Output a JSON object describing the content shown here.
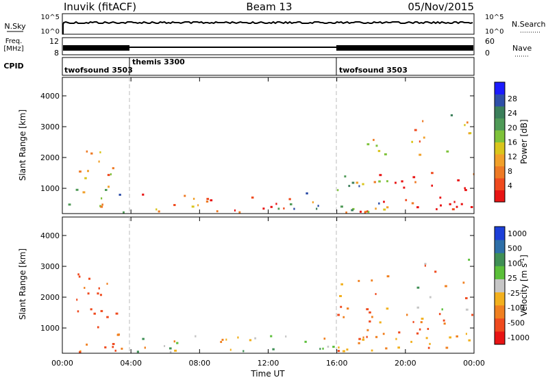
{
  "header": {
    "station": "Inuvik (fitACF)",
    "beam": "Beam 13",
    "date": "05/Nov/2015"
  },
  "left_panel_labels": {
    "nsky": "N.Sky",
    "freq_line1": "Freq.",
    "freq_line2": "[MHz]",
    "cpid": "CPID"
  },
  "right_panel_labels": {
    "nsearch": "N.Search",
    "nave": "Nave"
  },
  "small_axes": {
    "nsky_ticks_left": [
      "10^5",
      "10^0"
    ],
    "nsky_ticks_right": [
      "10^5",
      "10^0"
    ],
    "freq_ticks_left": [
      "12",
      "8"
    ],
    "nave_ticks_right": [
      "60",
      "0"
    ]
  },
  "cpid_segments": [
    {
      "label": "twofsound 3503",
      "start_hour": 0,
      "end_hour": 4
    },
    {
      "label": "themis 3300",
      "start_hour": 4,
      "end_hour": 16
    },
    {
      "label": "twofsound 3503",
      "start_hour": 16,
      "end_hour": 24
    }
  ],
  "chart_data": [
    {
      "type": "heatmap",
      "parameter": "power",
      "ylabel": "Slant Range [km]",
      "xlabel": "Time UT",
      "xlim_hours": [
        0,
        24
      ],
      "ylim_km": [
        180,
        4600
      ],
      "x_ticks": [
        "00:00",
        "04:00",
        "08:00",
        "12:00",
        "16:00",
        "20:00",
        "00:00"
      ],
      "y_ticks": [
        1000,
        2000,
        3000,
        4000
      ],
      "colorbar": {
        "label": "Power [dB]",
        "ticks": [
          "28",
          "24",
          "20",
          "16",
          "12",
          "8",
          "4"
        ],
        "colors": [
          "#1c1cff",
          "#2f4fa8",
          "#3b7f5a",
          "#4f9a57",
          "#7ec23a",
          "#d9c51c",
          "#f1a02a",
          "#ee7a25",
          "#ef4a1e",
          "#e81414"
        ]
      },
      "echo_regions": [
        {
          "t": [
            0.2,
            3.6
          ],
          "r": [
            200,
            1050
          ],
          "level": "mixed_low"
        },
        {
          "t": [
            0.8,
            3.4
          ],
          "r": [
            1300,
            2300
          ],
          "level": "mid"
        },
        {
          "t": [
            4.2,
            8.5
          ],
          "r": [
            200,
            800
          ],
          "level": "mixed_high"
        },
        {
          "t": [
            8.5,
            12.5
          ],
          "r": [
            200,
            700
          ],
          "level": "high"
        },
        {
          "t": [
            12.5,
            16.0
          ],
          "r": [
            200,
            900
          ],
          "level": "mixed"
        },
        {
          "t": [
            16.0,
            19.0
          ],
          "r": [
            200,
            2800
          ],
          "level": "mixed"
        },
        {
          "t": [
            19.0,
            24.0
          ],
          "r": [
            300,
            1500
          ],
          "level": "high"
        },
        {
          "t": [
            20.0,
            23.8
          ],
          "r": [
            1500,
            3800
          ],
          "level": "sparse"
        }
      ]
    },
    {
      "type": "heatmap",
      "parameter": "velocity",
      "ylabel": "Slant Range [km]",
      "xlabel": "Time UT",
      "xlim_hours": [
        0,
        24
      ],
      "ylim_km": [
        180,
        4600
      ],
      "x_ticks": [
        "00:00",
        "04:00",
        "08:00",
        "12:00",
        "16:00",
        "20:00",
        "00:00"
      ],
      "y_ticks": [
        1000,
        2000,
        3000,
        4000
      ],
      "colorbar": {
        "label": "Velocity [m s^-1]",
        "ticks": [
          "1000",
          "500",
          "100",
          "25",
          "-25",
          "-100",
          "-500",
          "-1000"
        ],
        "colors": [
          "#1c3fd8",
          "#2e6fa8",
          "#3f8f55",
          "#5bbf3a",
          "#c6c6c6",
          "#f2b01e",
          "#f08020",
          "#ef4a1e",
          "#e81414"
        ]
      },
      "echo_regions": [
        {
          "t": [
            0.2,
            3.6
          ],
          "r": [
            200,
            1050
          ],
          "level": "negative"
        },
        {
          "t": [
            0.8,
            3.4
          ],
          "r": [
            1300,
            2900
          ],
          "level": "negative_strong"
        },
        {
          "t": [
            4.2,
            16.0
          ],
          "r": [
            200,
            800
          ],
          "level": "mixed_near_zero"
        },
        {
          "t": [
            16.0,
            19.0
          ],
          "r": [
            200,
            2800
          ],
          "level": "negative"
        },
        {
          "t": [
            19.0,
            24.0
          ],
          "r": [
            300,
            1500
          ],
          "level": "negative"
        },
        {
          "t": [
            20.0,
            23.8
          ],
          "r": [
            1500,
            3800
          ],
          "level": "sparse_mixed"
        }
      ]
    }
  ]
}
